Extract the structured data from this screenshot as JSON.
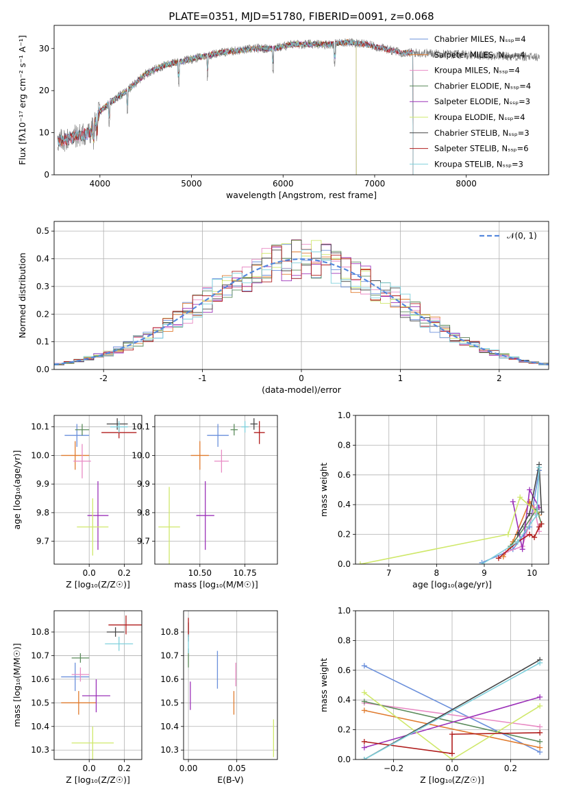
{
  "colors": [
    "#6a8fdb",
    "#e07b2e",
    "#e88ac4",
    "#5a8a5a",
    "#9b30b8",
    "#cfe86a",
    "#444444",
    "#b01c1c",
    "#7fd0dc"
  ],
  "chart_data": [
    {
      "id": "spectrum",
      "type": "line",
      "title": "PLATE=0351, MJD=51780, FIBERID=0091, z=0.068",
      "xlabel": "wavelength [Angstrom, rest frame]",
      "ylabel": "Flux [fλ10⁻¹⁷ erg cm⁻² s⁻¹ A⁻¹]",
      "xlim": [
        3500,
        8900
      ],
      "ylim": [
        0,
        35.5
      ],
      "xticks": [
        4000,
        5000,
        6000,
        7000,
        8000
      ],
      "yticks": [
        0,
        10,
        20,
        30
      ],
      "grid": false,
      "legend_position": "top-right",
      "legend": [
        "Chabrier MILES, Nₛₛₚ=4",
        "Salpeter MILES, Nₛₛₚ=4",
        "Kroupa MILES, Nₛₛₚ=4",
        "Chabrier ELODIE, Nₛₛₚ=4",
        "Salpeter ELODIE, Nₛₛₚ=3",
        "Kroupa ELODIE, Nₛₛₚ=4",
        "Chabrier STELIB, Nₛₛₚ=3",
        "Salpeter STELIB, Nₛₛₚ=6",
        "Kroupa STELIB, Nₛₛₚ=3"
      ],
      "continuum": {
        "x": [
          3560,
          3700,
          3900,
          4000,
          4100,
          4300,
          4500,
          4700,
          4900,
          5100,
          5300,
          5500,
          5700,
          5900,
          6100,
          6300,
          6500,
          6700,
          6900,
          7100,
          7300,
          7420
        ],
        "y": [
          8,
          9,
          10,
          15,
          17,
          20,
          24,
          26,
          27,
          28,
          29,
          29.5,
          30,
          30,
          31,
          31,
          31,
          31.5,
          31,
          30,
          29,
          29
        ]
      },
      "series_ranges": [
        {
          "name": "Chabrier MILES",
          "xmin": 3540,
          "xmax": 7420
        },
        {
          "name": "Salpeter MILES",
          "xmin": 3540,
          "xmax": 7420
        },
        {
          "name": "Kroupa MILES",
          "xmin": 3540,
          "xmax": 7420
        },
        {
          "name": "Chabrier ELODIE",
          "xmin": 3900,
          "xmax": 6800
        },
        {
          "name": "Salpeter ELODIE",
          "xmin": 3900,
          "xmax": 6800
        },
        {
          "name": "Kroupa ELODIE",
          "xmin": 3900,
          "xmax": 6800
        },
        {
          "name": "Chabrier STELIB",
          "xmin": 3540,
          "xmax": 7420
        },
        {
          "name": "Salpeter STELIB",
          "xmin": 3540,
          "xmax": 7420
        },
        {
          "name": "Kroupa STELIB",
          "xmin": 3540,
          "xmax": 7420
        }
      ]
    },
    {
      "id": "residuals",
      "type": "histogram",
      "xlabel": "(data-model)/error",
      "ylabel": "Normed distribution",
      "xlim": [
        -2.5,
        2.5
      ],
      "ylim": [
        0,
        0.535
      ],
      "xticks": [
        -2,
        -1,
        0,
        1,
        2
      ],
      "yticks": [
        0,
        0.1,
        0.2,
        0.3,
        0.4,
        0.5
      ],
      "grid": true,
      "bin_width": 0.1,
      "reference_curve": {
        "name": "𝒩(0, 1)",
        "mu": 0,
        "sigma": 1,
        "color": "#5588dd",
        "style": "dashed"
      },
      "legend_position": "top-right"
    },
    {
      "id": "age-vs-Z",
      "type": "scatter",
      "xlabel": "Z [log₁₀(Z/Z☉)]",
      "ylabel": "age  [log₁₀(age/yr)]",
      "xlim": [
        -0.2,
        0.3
      ],
      "ylim": [
        9.62,
        10.14
      ],
      "xticks": [
        0,
        0.2
      ],
      "xticklabels": [
        "0.0",
        "0.2"
      ],
      "yticks": [
        9.7,
        9.8,
        9.9,
        10.0,
        10.1
      ],
      "grid": true,
      "points": [
        {
          "x": -0.07,
          "xerr": 0.07,
          "y": 10.07,
          "yerr": 0.04
        },
        {
          "x": -0.08,
          "xerr": 0.08,
          "y": 10.0,
          "yerr": 0.05
        },
        {
          "x": -0.04,
          "xerr": 0.05,
          "y": 9.98,
          "yerr": 0.06
        },
        {
          "x": -0.04,
          "xerr": 0.04,
          "y": 10.09,
          "yerr": 0.02
        },
        {
          "x": 0.05,
          "xerr": 0.06,
          "y": 9.79,
          "yerr": 0.12
        },
        {
          "x": 0.02,
          "xerr": 0.09,
          "y": 9.75,
          "yerr": 0.1
        },
        {
          "x": 0.16,
          "xerr": 0.06,
          "y": 10.11,
          "yerr": 0.02
        },
        {
          "x": 0.17,
          "xerr": 0.1,
          "y": 10.08,
          "yerr": 0.02
        },
        {
          "x": 0.17,
          "xerr": 0.05,
          "y": 10.1,
          "yerr": 0.02
        }
      ]
    },
    {
      "id": "age-vs-mass",
      "type": "scatter",
      "xlabel": "mass [log₁₀(M/M☉)]",
      "ylabel": "",
      "xlim": [
        10.25,
        10.93
      ],
      "ylim": [
        9.62,
        10.14
      ],
      "xticks": [
        10.5,
        10.75
      ],
      "xticklabels": [
        "10.50",
        "10.75"
      ],
      "yticks": [
        9.7,
        9.8,
        9.9,
        10.0,
        10.1
      ],
      "grid": true,
      "points": [
        {
          "x": 10.6,
          "xerr": 0.06,
          "y": 10.07,
          "yerr": 0.04
        },
        {
          "x": 10.5,
          "xerr": 0.05,
          "y": 10.0,
          "yerr": 0.05
        },
        {
          "x": 10.62,
          "xerr": 0.04,
          "y": 9.98,
          "yerr": 0.04
        },
        {
          "x": 10.69,
          "xerr": 0.02,
          "y": 10.09,
          "yerr": 0.02
        },
        {
          "x": 10.53,
          "xerr": 0.05,
          "y": 9.79,
          "yerr": 0.12
        },
        {
          "x": 10.33,
          "xerr": 0.06,
          "y": 9.75,
          "yerr": 0.14
        },
        {
          "x": 10.8,
          "xerr": 0.02,
          "y": 10.11,
          "yerr": 0.02
        },
        {
          "x": 10.83,
          "xerr": 0.03,
          "y": 10.08,
          "yerr": 0.04
        },
        {
          "x": 10.75,
          "xerr": 0.02,
          "y": 10.1,
          "yerr": 0.02
        }
      ]
    },
    {
      "id": "mass-weight-vs-age",
      "type": "line",
      "xlabel": "age  [log₁₀(age/yr)]",
      "ylabel": "mass weight",
      "xlim": [
        6.3,
        10.35
      ],
      "ylim": [
        0,
        1.0
      ],
      "xticks": [
        7,
        8,
        9,
        10
      ],
      "yticks": [
        0,
        0.2,
        0.4,
        0.6,
        0.8,
        1.0
      ],
      "grid": true,
      "series": [
        {
          "x": [
            8.95,
            9.6,
            9.95,
            10.15
          ],
          "y": [
            0.01,
            0.1,
            0.25,
            0.63
          ]
        },
        {
          "x": [
            9.4,
            9.6,
            9.95,
            10.15
          ],
          "y": [
            0.05,
            0.15,
            0.42,
            0.33
          ]
        },
        {
          "x": [
            9.45,
            9.8,
            10.05,
            10.15
          ],
          "y": [
            0.08,
            0.12,
            0.38,
            0.22
          ]
        },
        {
          "x": [
            9.55,
            9.85,
            10.1,
            10.2
          ],
          "y": [
            0.12,
            0.25,
            0.37,
            0.27
          ]
        },
        {
          "x": [
            9.6,
            9.8,
            9.95,
            10.15
          ],
          "y": [
            0.42,
            0.1,
            0.5,
            0.38
          ]
        },
        {
          "x": [
            6.4,
            9.5,
            9.75,
            10.1
          ],
          "y": [
            0.0,
            0.2,
            0.45,
            0.35
          ]
        },
        {
          "x": [
            9.7,
            9.95,
            10.15,
            10.2
          ],
          "y": [
            0.2,
            0.34,
            0.67,
            0.35
          ]
        },
        {
          "x": [
            9.3,
            9.7,
            9.95,
            10.05,
            10.15,
            10.2
          ],
          "y": [
            0.04,
            0.15,
            0.2,
            0.18,
            0.25,
            0.27
          ]
        },
        {
          "x": [
            8.95,
            9.7,
            10.1,
            10.15
          ],
          "y": [
            0.0,
            0.15,
            0.33,
            0.65
          ]
        }
      ]
    },
    {
      "id": "mass-vs-Z",
      "type": "scatter",
      "xlabel": "Z [log₁₀(Z/Z☉)]",
      "ylabel": "mass [log₁₀(M/M☉)]",
      "xlim": [
        -0.2,
        0.3
      ],
      "ylim": [
        10.26,
        10.89
      ],
      "xticks": [
        0,
        0.2
      ],
      "xticklabels": [
        "0.0",
        "0.2"
      ],
      "yticks": [
        10.3,
        10.4,
        10.5,
        10.6,
        10.7,
        10.8
      ],
      "grid": true,
      "points": [
        {
          "x": -0.08,
          "xerr": 0.08,
          "y": 10.61,
          "yerr": 0.06
        },
        {
          "x": -0.06,
          "xerr": 0.1,
          "y": 10.5,
          "yerr": 0.05
        },
        {
          "x": -0.05,
          "xerr": 0.05,
          "y": 10.62,
          "yerr": 0.03
        },
        {
          "x": -0.05,
          "xerr": 0.05,
          "y": 10.69,
          "yerr": 0.02
        },
        {
          "x": 0.04,
          "xerr": 0.08,
          "y": 10.53,
          "yerr": 0.07
        },
        {
          "x": 0.02,
          "xerr": 0.12,
          "y": 10.33,
          "yerr": 0.07
        },
        {
          "x": 0.15,
          "xerr": 0.05,
          "y": 10.8,
          "yerr": 0.02
        },
        {
          "x": 0.21,
          "xerr": 0.1,
          "y": 10.83,
          "yerr": 0.04
        },
        {
          "x": 0.17,
          "xerr": 0.08,
          "y": 10.75,
          "yerr": 0.03
        }
      ]
    },
    {
      "id": "mass-vs-EBV",
      "type": "scatter",
      "xlabel": "E(B-V)",
      "ylabel": "",
      "xlim": [
        -0.005,
        0.092
      ],
      "ylim": [
        10.26,
        10.89
      ],
      "xticks": [
        0.0,
        0.05
      ],
      "xticklabels": [
        "0.00",
        "0.05"
      ],
      "yticks": [
        10.3,
        10.4,
        10.5,
        10.6,
        10.7,
        10.8
      ],
      "grid": true,
      "points": [
        {
          "x": 0.03,
          "xerr": 0,
          "y": 10.64,
          "yerr": 0.08
        },
        {
          "x": 0.047,
          "xerr": 0,
          "y": 10.5,
          "yerr": 0.05
        },
        {
          "x": 0.049,
          "xerr": 0,
          "y": 10.62,
          "yerr": 0.05
        },
        {
          "x": 0.0,
          "xerr": 0,
          "y": 10.69,
          "yerr": 0.04
        },
        {
          "x": 0.002,
          "xerr": 0,
          "y": 10.53,
          "yerr": 0.06
        },
        {
          "x": 0.088,
          "xerr": 0,
          "y": 10.35,
          "yerr": 0.08
        },
        {
          "x": 0.0,
          "xerr": 0,
          "y": 10.8,
          "yerr": 0.04
        },
        {
          "x": 0.0,
          "xerr": 0,
          "y": 10.82,
          "yerr": 0.04
        },
        {
          "x": 0.0,
          "xerr": 0,
          "y": 10.75,
          "yerr": 0.04
        }
      ]
    },
    {
      "id": "mass-weight-vs-Z",
      "type": "line",
      "xlabel": "Z [log₁₀(Z/Z☉)]",
      "ylabel": "mass weight",
      "xlim": [
        -0.33,
        0.33
      ],
      "ylim": [
        0,
        1.0
      ],
      "xticks": [
        -0.2,
        0.0,
        0.2
      ],
      "xticklabels": [
        "−0.2",
        "0.0",
        "0.2"
      ],
      "yticks": [
        0,
        0.2,
        0.4,
        0.6,
        0.8,
        1.0
      ],
      "grid": true,
      "series": [
        {
          "x": [
            -0.3,
            0.3
          ],
          "y": [
            0.63,
            0.05
          ]
        },
        {
          "x": [
            -0.3,
            0.3
          ],
          "y": [
            0.33,
            0.08
          ]
        },
        {
          "x": [
            -0.3,
            0.3
          ],
          "y": [
            0.38,
            0.22
          ]
        },
        {
          "x": [
            -0.3,
            0.3
          ],
          "y": [
            0.39,
            0.12
          ]
        },
        {
          "x": [
            -0.3,
            0.3
          ],
          "y": [
            0.08,
            0.42
          ]
        },
        {
          "x": [
            -0.3,
            0.0,
            0.3
          ],
          "y": [
            0.45,
            0.0,
            0.36
          ]
        },
        {
          "x": [
            -0.3,
            0.3
          ],
          "y": [
            0.0,
            0.67
          ]
        },
        {
          "x": [
            -0.3,
            0.0,
            0.0,
            0.3
          ],
          "y": [
            0.12,
            0.04,
            0.17,
            0.18
          ]
        },
        {
          "x": [
            -0.3,
            0.3
          ],
          "y": [
            0.0,
            0.65
          ]
        }
      ]
    }
  ]
}
